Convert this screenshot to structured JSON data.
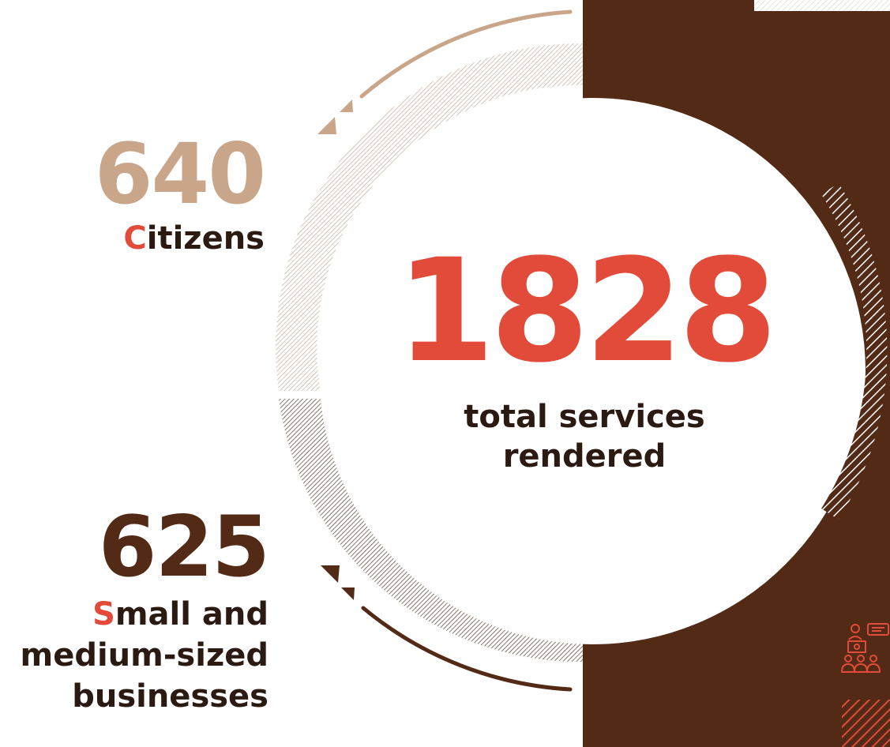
{
  "chart_data": {
    "type": "pie",
    "title": "",
    "total": {
      "value": "1828",
      "label": "total services rendered"
    },
    "segments": [
      {
        "value": 640,
        "label": "Citizens",
        "initial": "C",
        "rest": "itizens",
        "color": "#c9a68a"
      },
      {
        "value": 625,
        "label": "Small and medium-sized businesses",
        "initial": "S",
        "rest_lines": [
          "mall and",
          "medium-sized",
          "businesses"
        ],
        "color": "#522a16"
      }
    ]
  },
  "colors": {
    "accent": "#e24b3a",
    "brown_dark": "#522a16",
    "tan": "#c9a68a",
    "text_dark": "#2a1a12"
  },
  "icons": [
    "presentation-audience-icon"
  ]
}
